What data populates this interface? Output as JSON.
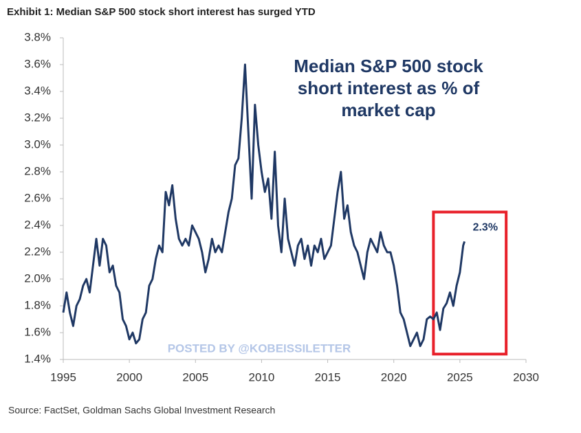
{
  "chart_data": {
    "type": "line",
    "title": "Exhibit 1: Median S&P 500 stock short interest has surged YTD",
    "inner_title": [
      "Median S&P 500 stock",
      "short interest as % of",
      "market cap"
    ],
    "watermark": "POSTED BY @KOBEISSILETTER",
    "source": "Source: FactSet, Goldman Sachs Global Investment Research",
    "x": [
      1995.0,
      1995.25,
      1995.5,
      1995.75,
      1996.0,
      1996.25,
      1996.5,
      1996.75,
      1997.0,
      1997.25,
      1997.5,
      1997.75,
      1998.0,
      1998.25,
      1998.5,
      1998.75,
      1999.0,
      1999.25,
      1999.5,
      1999.75,
      2000.0,
      2000.25,
      2000.5,
      2000.75,
      2001.0,
      2001.25,
      2001.5,
      2001.75,
      2002.0,
      2002.25,
      2002.5,
      2002.75,
      2003.0,
      2003.25,
      2003.5,
      2003.75,
      2004.0,
      2004.25,
      2004.5,
      2004.75,
      2005.0,
      2005.25,
      2005.5,
      2005.75,
      2006.0,
      2006.25,
      2006.5,
      2006.75,
      2007.0,
      2007.25,
      2007.5,
      2007.75,
      2008.0,
      2008.25,
      2008.5,
      2008.75,
      2009.0,
      2009.25,
      2009.5,
      2009.75,
      2010.0,
      2010.25,
      2010.5,
      2010.75,
      2011.0,
      2011.25,
      2011.5,
      2011.75,
      2012.0,
      2012.25,
      2012.5,
      2012.75,
      2013.0,
      2013.25,
      2013.5,
      2013.75,
      2014.0,
      2014.25,
      2014.5,
      2014.75,
      2015.0,
      2015.25,
      2015.5,
      2015.75,
      2016.0,
      2016.25,
      2016.5,
      2016.75,
      2017.0,
      2017.25,
      2017.5,
      2017.75,
      2018.0,
      2018.25,
      2018.5,
      2018.75,
      2019.0,
      2019.25,
      2019.5,
      2019.75,
      2020.0,
      2020.25,
      2020.5,
      2020.75,
      2021.0,
      2021.25,
      2021.5,
      2021.75,
      2022.0,
      2022.25,
      2022.5,
      2022.75,
      2023.0,
      2023.25,
      2023.5,
      2023.75,
      2024.0,
      2024.25,
      2024.5,
      2024.75,
      2025.0,
      2025.25,
      2025.35
    ],
    "series": [
      {
        "name": "Median S&P 500 stock short interest as % of market cap",
        "color": "#1f3864",
        "values": [
          1.75,
          1.9,
          1.75,
          1.65,
          1.8,
          1.85,
          1.95,
          2.0,
          1.9,
          2.1,
          2.3,
          2.1,
          2.3,
          2.25,
          2.05,
          2.1,
          1.95,
          1.9,
          1.7,
          1.65,
          1.55,
          1.6,
          1.52,
          1.55,
          1.7,
          1.75,
          1.95,
          2.0,
          2.15,
          2.25,
          2.2,
          2.65,
          2.55,
          2.7,
          2.45,
          2.3,
          2.25,
          2.3,
          2.25,
          2.4,
          2.35,
          2.3,
          2.2,
          2.05,
          2.15,
          2.3,
          2.2,
          2.25,
          2.2,
          2.35,
          2.5,
          2.6,
          2.85,
          2.9,
          3.2,
          3.6,
          3.1,
          2.6,
          3.3,
          3.0,
          2.8,
          2.65,
          2.75,
          2.45,
          2.95,
          2.4,
          2.2,
          2.6,
          2.3,
          2.2,
          2.1,
          2.25,
          2.3,
          2.15,
          2.25,
          2.1,
          2.25,
          2.2,
          2.3,
          2.15,
          2.2,
          2.25,
          2.45,
          2.65,
          2.8,
          2.45,
          2.55,
          2.35,
          2.25,
          2.2,
          2.1,
          2.0,
          2.2,
          2.3,
          2.25,
          2.2,
          2.35,
          2.25,
          2.2,
          2.2,
          2.1,
          1.95,
          1.75,
          1.7,
          1.6,
          1.5,
          1.55,
          1.6,
          1.5,
          1.55,
          1.7,
          1.72,
          1.7,
          1.75,
          1.62,
          1.78,
          1.82,
          1.9,
          1.8,
          1.95,
          2.05,
          2.25,
          2.28
        ]
      }
    ],
    "annotations": [
      {
        "text": "2.3%",
        "x": 2025.35,
        "y": 2.28
      }
    ],
    "highlight": {
      "xlim": [
        2023,
        2028.5
      ],
      "ylim": [
        1.44,
        2.5
      ],
      "color": "#e8202a"
    },
    "xlim": [
      1995,
      2030
    ],
    "xticks": [
      1995,
      2000,
      2005,
      2010,
      2015,
      2020,
      2025,
      2030
    ],
    "ylim": [
      1.4,
      3.8
    ],
    "yticks": [
      {
        "value": 1.4,
        "label": "1.4%"
      },
      {
        "value": 1.6,
        "label": "1.6%"
      },
      {
        "value": 1.8,
        "label": "1.8%"
      },
      {
        "value": 2.0,
        "label": "2.0%"
      },
      {
        "value": 2.2,
        "label": "2.2%"
      },
      {
        "value": 2.4,
        "label": "2.4%"
      },
      {
        "value": 2.6,
        "label": "2.6%"
      },
      {
        "value": 2.8,
        "label": "2.8%"
      },
      {
        "value": 3.0,
        "label": "3.0%"
      },
      {
        "value": 3.2,
        "label": "3.2%"
      },
      {
        "value": 3.4,
        "label": "3.4%"
      },
      {
        "value": 3.6,
        "label": "3.6%"
      },
      {
        "value": 3.8,
        "label": "3.8%"
      }
    ]
  }
}
